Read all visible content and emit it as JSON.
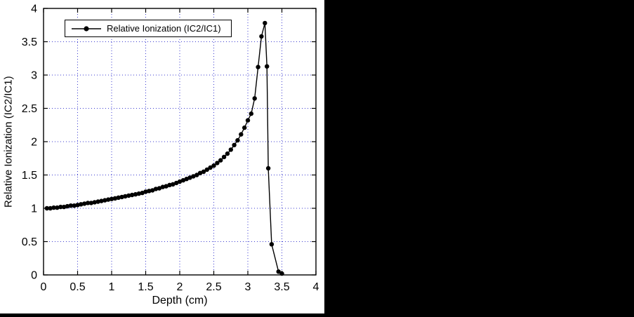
{
  "panel": {
    "background_right": "#000000",
    "chart_background": "#ffffff"
  },
  "chart_data": {
    "type": "line",
    "title": "",
    "xlabel": "Depth (cm)",
    "ylabel": "Relative Ionization (IC2/IC1)",
    "xlim": [
      0,
      4
    ],
    "ylim": [
      0,
      4
    ],
    "xticks": [
      0,
      0.5,
      1,
      1.5,
      2,
      2.5,
      3,
      3.5,
      4
    ],
    "xtick_labels": [
      "0",
      "0.5",
      "1",
      "1.5",
      "2",
      "2.5",
      "3",
      "3.5",
      "4"
    ],
    "yticks": [
      0,
      0.5,
      1,
      1.5,
      2,
      2.5,
      3,
      3.5,
      4
    ],
    "ytick_labels": [
      "0",
      "0.5",
      "1",
      "1.5",
      "2",
      "2.5",
      "3",
      "3.5",
      "4"
    ],
    "grid": true,
    "grid_color": "#3b3bd0",
    "axis_color": "#000000",
    "legend": {
      "position": "top-left",
      "entries": [
        "Relative Ionization (IC2/IC1)"
      ]
    },
    "series": [
      {
        "name": "Relative Ionization (IC2/IC1)",
        "color": "#000000",
        "marker": "circle",
        "points": [
          [
            0.05,
            1.0
          ],
          [
            0.1,
            1.0
          ],
          [
            0.15,
            1.01
          ],
          [
            0.2,
            1.01
          ],
          [
            0.25,
            1.02
          ],
          [
            0.3,
            1.02
          ],
          [
            0.35,
            1.03
          ],
          [
            0.4,
            1.04
          ],
          [
            0.45,
            1.04
          ],
          [
            0.5,
            1.05
          ],
          [
            0.55,
            1.06
          ],
          [
            0.6,
            1.07
          ],
          [
            0.65,
            1.08
          ],
          [
            0.7,
            1.08
          ],
          [
            0.75,
            1.09
          ],
          [
            0.8,
            1.1
          ],
          [
            0.85,
            1.11
          ],
          [
            0.9,
            1.12
          ],
          [
            0.95,
            1.13
          ],
          [
            1.0,
            1.14
          ],
          [
            1.05,
            1.15
          ],
          [
            1.1,
            1.16
          ],
          [
            1.15,
            1.17
          ],
          [
            1.2,
            1.18
          ],
          [
            1.25,
            1.19
          ],
          [
            1.3,
            1.2
          ],
          [
            1.35,
            1.21
          ],
          [
            1.4,
            1.22
          ],
          [
            1.45,
            1.23
          ],
          [
            1.5,
            1.25
          ],
          [
            1.55,
            1.26
          ],
          [
            1.6,
            1.27
          ],
          [
            1.65,
            1.29
          ],
          [
            1.7,
            1.3
          ],
          [
            1.75,
            1.32
          ],
          [
            1.8,
            1.33
          ],
          [
            1.85,
            1.35
          ],
          [
            1.9,
            1.36
          ],
          [
            1.95,
            1.38
          ],
          [
            2.0,
            1.4
          ],
          [
            2.05,
            1.42
          ],
          [
            2.1,
            1.44
          ],
          [
            2.15,
            1.46
          ],
          [
            2.2,
            1.48
          ],
          [
            2.25,
            1.5
          ],
          [
            2.3,
            1.53
          ],
          [
            2.35,
            1.55
          ],
          [
            2.4,
            1.58
          ],
          [
            2.45,
            1.61
          ],
          [
            2.5,
            1.64
          ],
          [
            2.55,
            1.68
          ],
          [
            2.6,
            1.72
          ],
          [
            2.65,
            1.77
          ],
          [
            2.7,
            1.82
          ],
          [
            2.75,
            1.88
          ],
          [
            2.8,
            1.95
          ],
          [
            2.85,
            2.02
          ],
          [
            2.9,
            2.11
          ],
          [
            2.95,
            2.21
          ],
          [
            3.0,
            2.32
          ],
          [
            3.05,
            2.42
          ],
          [
            3.1,
            2.65
          ],
          [
            3.15,
            3.12
          ],
          [
            3.2,
            3.58
          ],
          [
            3.25,
            3.78
          ],
          [
            3.28,
            3.13
          ],
          [
            3.3,
            1.6
          ],
          [
            3.35,
            0.46
          ],
          [
            3.45,
            0.05
          ],
          [
            3.5,
            0.02
          ]
        ]
      }
    ]
  }
}
